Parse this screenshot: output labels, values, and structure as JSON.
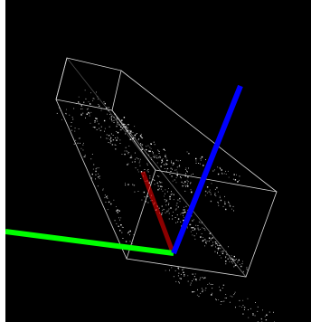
{
  "viewer": {
    "background_color": "#000000",
    "bounding_box_color": "#d8d8d8",
    "point_color": "#ffffff",
    "axes": [
      {
        "name": "x",
        "color": "#ff0000"
      },
      {
        "name": "y",
        "color": "#00ff00"
      },
      {
        "name": "z",
        "color": "#0000ff"
      }
    ]
  }
}
